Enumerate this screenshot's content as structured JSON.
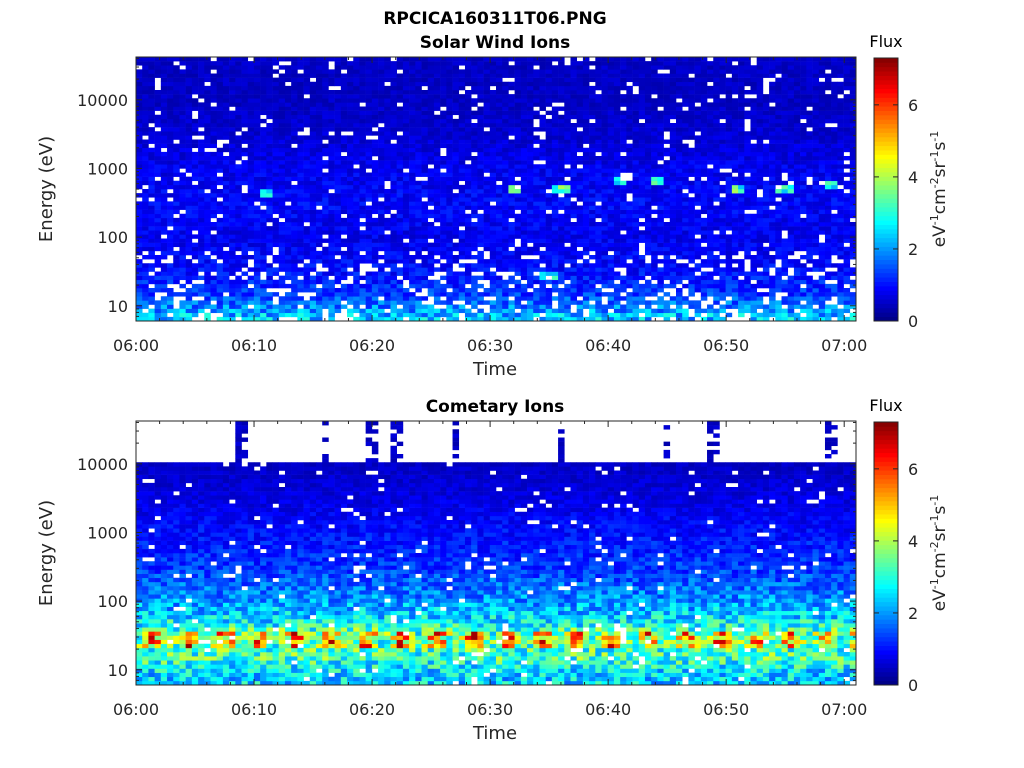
{
  "figure_title": "RPCICA160311T06.PNG",
  "colorscale": [
    "#00007f",
    "#0000ff",
    "#007fff",
    "#00ffff",
    "#7fff7f",
    "#ffff00",
    "#ff7f00",
    "#ff0000",
    "#7f0000"
  ],
  "chart_data": [
    {
      "type": "heatmap",
      "title": "Solar Wind Ions",
      "xlabel": "Time",
      "ylabel": "Energy (eV)",
      "x_ticks": [
        "06:00",
        "06:10",
        "06:20",
        "06:30",
        "06:40",
        "06:50",
        "07:00"
      ],
      "x_range": [
        "06:00",
        "07:01"
      ],
      "y_scale": "log",
      "y_ticks": [
        10,
        100,
        1000,
        10000
      ],
      "y_tick_labels": [
        "10",
        "100",
        "1000",
        "10000"
      ],
      "ylim": [
        6,
        42000
      ],
      "colorbar": {
        "label": "Flux",
        "units": "eV-1cm-2sr-1s-1",
        "range": [
          0,
          7.3
        ],
        "ticks": [
          0,
          2,
          4,
          6
        ]
      },
      "profile": {
        "energies": [
          7,
          10,
          15,
          20,
          30,
          50,
          100,
          300,
          1000,
          3000,
          10000,
          30000
        ],
        "flux": [
          2.3,
          1.8,
          1.3,
          1.2,
          1.0,
          0.9,
          0.8,
          0.9,
          0.8,
          0.6,
          0.5,
          0.5
        ]
      },
      "features": [
        {
          "time": "06:11",
          "energy": 450,
          "flux": 3.0
        },
        {
          "time": "06:32",
          "energy": 500,
          "flux": 2.8
        },
        {
          "time": "06:36",
          "energy": 500,
          "flux": 3.0
        },
        {
          "time": "06:41",
          "energy": 620,
          "flux": 2.6
        },
        {
          "time": "06:44",
          "energy": 620,
          "flux": 2.8
        },
        {
          "time": "06:51",
          "energy": 520,
          "flux": 3.0
        },
        {
          "time": "06:55",
          "energy": 500,
          "flux": 3.1
        },
        {
          "time": "06:59",
          "energy": 550,
          "flux": 2.7
        },
        {
          "time": "06:35",
          "energy": 28,
          "flux": 3.0
        }
      ],
      "empty_fraction": 0.06
    },
    {
      "type": "heatmap",
      "title": "Cometary Ions",
      "xlabel": "Time",
      "ylabel": "Energy (eV)",
      "x_ticks": [
        "06:00",
        "06:10",
        "06:20",
        "06:30",
        "06:40",
        "06:50",
        "07:00"
      ],
      "x_range": [
        "06:00",
        "07:01"
      ],
      "y_scale": "log",
      "y_ticks": [
        10,
        100,
        1000,
        10000
      ],
      "y_tick_labels": [
        "10",
        "100",
        "1000",
        "10000"
      ],
      "ylim": [
        6,
        42000
      ],
      "colorbar": {
        "label": "Flux",
        "units": "eV-1cm-2sr-1s-1",
        "range": [
          0,
          7.3
        ],
        "ticks": [
          0,
          2,
          4,
          6
        ]
      },
      "upper_cutoff_eV": 11000,
      "spikes_to_eV": 40000,
      "spike_times": [
        "06:09",
        "06:16",
        "06:20",
        "06:22",
        "06:27",
        "06:36",
        "06:45",
        "06:49",
        "06:59"
      ],
      "profile": {
        "energies": [
          6,
          8,
          10,
          13,
          15,
          20,
          25,
          30,
          40,
          60,
          100,
          300,
          1000,
          3000,
          10000
        ],
        "flux": [
          2.5,
          2.4,
          2.6,
          3.0,
          3.2,
          3.2,
          4.8,
          5.2,
          3.0,
          2.5,
          2.0,
          1.3,
          1.0,
          0.7,
          0.5
        ]
      },
      "periodic_peak": {
        "energy_range": [
          22,
          38
        ],
        "period_min": 3.0,
        "peak_flux": 5.3,
        "trough_flux": 3.2
      },
      "empty_fraction": 0.04
    }
  ]
}
